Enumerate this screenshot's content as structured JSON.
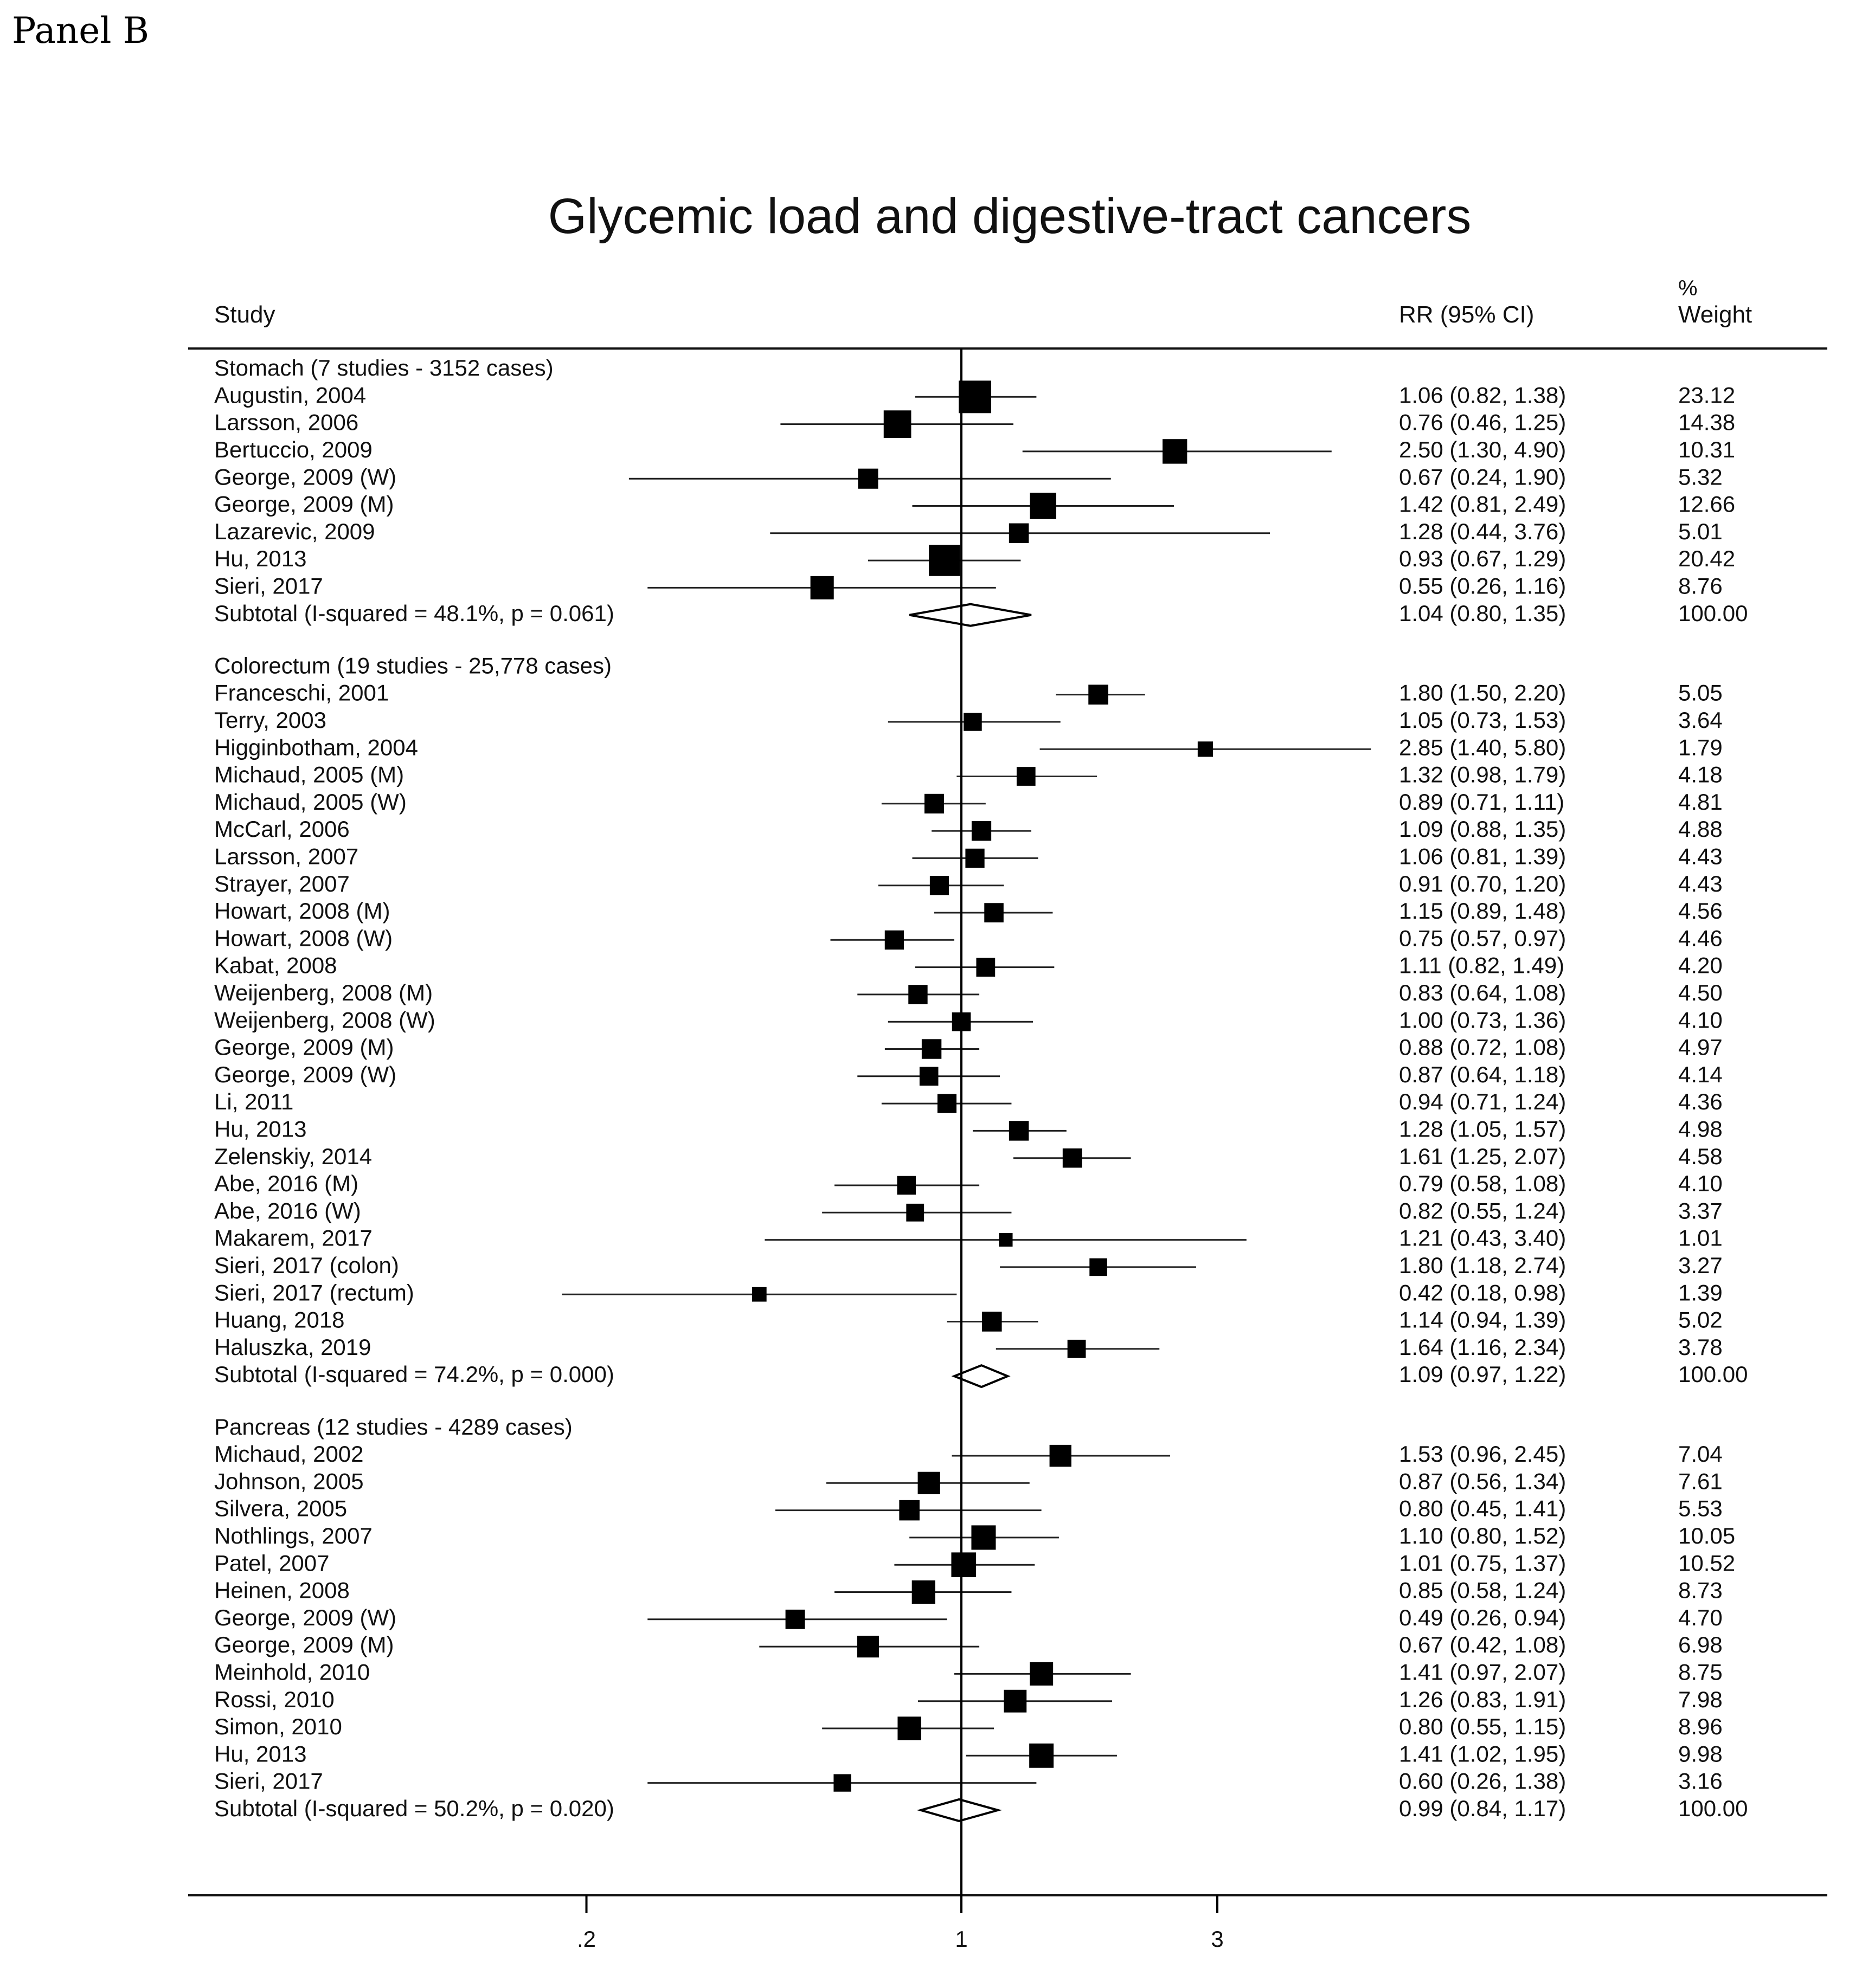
{
  "panel_label": "Panel B",
  "chart_data": {
    "type": "forest",
    "title": "Glycemic load and digestive-tract cancers",
    "columns": {
      "study": "Study",
      "effect": "RR (95% CI)",
      "weight_top": "%",
      "weight": "Weight"
    },
    "x_scale": "log",
    "null_line": 1,
    "xlim": [
      0.15,
      6.2
    ],
    "x_ticks": [
      {
        "value": 0.2,
        "label": ".2"
      },
      {
        "value": 1,
        "label": "1"
      },
      {
        "value": 3,
        "label": "3"
      }
    ],
    "groups": [
      {
        "name": "Stomach (7 studies - 3152 cases)",
        "studies": [
          {
            "label": "Augustin, 2004",
            "rr": 1.06,
            "lo": 0.82,
            "hi": 1.38,
            "ci_text": "1.06 (0.82, 1.38)",
            "weight": "23.12"
          },
          {
            "label": "Larsson, 2006",
            "rr": 0.76,
            "lo": 0.46,
            "hi": 1.25,
            "ci_text": "0.76 (0.46, 1.25)",
            "weight": "14.38"
          },
          {
            "label": "Bertuccio, 2009",
            "rr": 2.5,
            "lo": 1.3,
            "hi": 4.9,
            "ci_text": "2.50 (1.30, 4.90)",
            "weight": "10.31"
          },
          {
            "label": "George, 2009 (W)",
            "rr": 0.67,
            "lo": 0.24,
            "hi": 1.9,
            "ci_text": "0.67 (0.24, 1.90)",
            "weight": "5.32"
          },
          {
            "label": "George, 2009 (M)",
            "rr": 1.42,
            "lo": 0.81,
            "hi": 2.49,
            "ci_text": "1.42 (0.81, 2.49)",
            "weight": "12.66"
          },
          {
            "label": "Lazarevic, 2009",
            "rr": 1.28,
            "lo": 0.44,
            "hi": 3.76,
            "ci_text": "1.28 (0.44, 3.76)",
            "weight": "5.01"
          },
          {
            "label": "Hu, 2013",
            "rr": 0.93,
            "lo": 0.67,
            "hi": 1.29,
            "ci_text": "0.93 (0.67, 1.29)",
            "weight": "20.42"
          },
          {
            "label": "Sieri, 2017",
            "rr": 0.55,
            "lo": 0.26,
            "hi": 1.16,
            "ci_text": "0.55 (0.26, 1.16)",
            "weight": "8.76"
          }
        ],
        "subtotal": {
          "label": "Subtotal  (I-squared = 48.1%, p = 0.061)",
          "rr": 1.04,
          "lo": 0.8,
          "hi": 1.35,
          "ci_text": "1.04 (0.80, 1.35)",
          "weight": "100.00"
        }
      },
      {
        "name": "Colorectum (19 studies - 25,778 cases)",
        "studies": [
          {
            "label": "Franceschi, 2001",
            "rr": 1.8,
            "lo": 1.5,
            "hi": 2.2,
            "ci_text": "1.80 (1.50, 2.20)",
            "weight": "5.05"
          },
          {
            "label": "Terry, 2003",
            "rr": 1.05,
            "lo": 0.73,
            "hi": 1.53,
            "ci_text": "1.05 (0.73, 1.53)",
            "weight": "3.64"
          },
          {
            "label": "Higginbotham, 2004",
            "rr": 2.85,
            "lo": 1.4,
            "hi": 5.8,
            "ci_text": "2.85 (1.40, 5.80)",
            "weight": "1.79"
          },
          {
            "label": "Michaud, 2005 (M)",
            "rr": 1.32,
            "lo": 0.98,
            "hi": 1.79,
            "ci_text": "1.32 (0.98, 1.79)",
            "weight": "4.18"
          },
          {
            "label": "Michaud, 2005 (W)",
            "rr": 0.89,
            "lo": 0.71,
            "hi": 1.11,
            "ci_text": "0.89 (0.71, 1.11)",
            "weight": "4.81"
          },
          {
            "label": "McCarl, 2006",
            "rr": 1.09,
            "lo": 0.88,
            "hi": 1.35,
            "ci_text": "1.09 (0.88, 1.35)",
            "weight": "4.88"
          },
          {
            "label": "Larsson, 2007",
            "rr": 1.06,
            "lo": 0.81,
            "hi": 1.39,
            "ci_text": "1.06 (0.81, 1.39)",
            "weight": "4.43"
          },
          {
            "label": "Strayer, 2007",
            "rr": 0.91,
            "lo": 0.7,
            "hi": 1.2,
            "ci_text": "0.91 (0.70, 1.20)",
            "weight": "4.43"
          },
          {
            "label": "Howart, 2008 (M)",
            "rr": 1.15,
            "lo": 0.89,
            "hi": 1.48,
            "ci_text": "1.15 (0.89, 1.48)",
            "weight": "4.56"
          },
          {
            "label": "Howart, 2008 (W)",
            "rr": 0.75,
            "lo": 0.57,
            "hi": 0.97,
            "ci_text": "0.75 (0.57, 0.97)",
            "weight": "4.46"
          },
          {
            "label": "Kabat, 2008",
            "rr": 1.11,
            "lo": 0.82,
            "hi": 1.49,
            "ci_text": "1.11 (0.82, 1.49)",
            "weight": "4.20"
          },
          {
            "label": "Weijenberg, 2008 (M)",
            "rr": 0.83,
            "lo": 0.64,
            "hi": 1.08,
            "ci_text": "0.83 (0.64, 1.08)",
            "weight": "4.50"
          },
          {
            "label": "Weijenberg, 2008 (W)",
            "rr": 1.0,
            "lo": 0.73,
            "hi": 1.36,
            "ci_text": "1.00 (0.73, 1.36)",
            "weight": "4.10"
          },
          {
            "label": "George, 2009 (M)",
            "rr": 0.88,
            "lo": 0.72,
            "hi": 1.08,
            "ci_text": "0.88 (0.72, 1.08)",
            "weight": "4.97"
          },
          {
            "label": "George, 2009 (W)",
            "rr": 0.87,
            "lo": 0.64,
            "hi": 1.18,
            "ci_text": "0.87 (0.64, 1.18)",
            "weight": "4.14"
          },
          {
            "label": "Li, 2011",
            "rr": 0.94,
            "lo": 0.71,
            "hi": 1.24,
            "ci_text": "0.94 (0.71, 1.24)",
            "weight": "4.36"
          },
          {
            "label": "Hu, 2013",
            "rr": 1.28,
            "lo": 1.05,
            "hi": 1.57,
            "ci_text": "1.28 (1.05, 1.57)",
            "weight": "4.98"
          },
          {
            "label": "Zelenskiy, 2014",
            "rr": 1.61,
            "lo": 1.25,
            "hi": 2.07,
            "ci_text": "1.61 (1.25, 2.07)",
            "weight": "4.58"
          },
          {
            "label": "Abe, 2016 (M)",
            "rr": 0.79,
            "lo": 0.58,
            "hi": 1.08,
            "ci_text": "0.79 (0.58, 1.08)",
            "weight": "4.10"
          },
          {
            "label": "Abe, 2016 (W)",
            "rr": 0.82,
            "lo": 0.55,
            "hi": 1.24,
            "ci_text": "0.82 (0.55, 1.24)",
            "weight": "3.37"
          },
          {
            "label": "Makarem, 2017",
            "rr": 1.21,
            "lo": 0.43,
            "hi": 3.4,
            "ci_text": "1.21 (0.43, 3.40)",
            "weight": "1.01"
          },
          {
            "label": "Sieri, 2017 (colon)",
            "rr": 1.8,
            "lo": 1.18,
            "hi": 2.74,
            "ci_text": "1.80 (1.18, 2.74)",
            "weight": "3.27"
          },
          {
            "label": "Sieri, 2017 (rectum)",
            "rr": 0.42,
            "lo": 0.18,
            "hi": 0.98,
            "ci_text": "0.42 (0.18, 0.98)",
            "weight": "1.39"
          },
          {
            "label": "Huang, 2018",
            "rr": 1.14,
            "lo": 0.94,
            "hi": 1.39,
            "ci_text": "1.14 (0.94, 1.39)",
            "weight": "5.02"
          },
          {
            "label": "Haluszka, 2019",
            "rr": 1.64,
            "lo": 1.16,
            "hi": 2.34,
            "ci_text": "1.64 (1.16, 2.34)",
            "weight": "3.78"
          }
        ],
        "subtotal": {
          "label": "Subtotal  (I-squared = 74.2%, p = 0.000)",
          "rr": 1.09,
          "lo": 0.97,
          "hi": 1.22,
          "ci_text": "1.09 (0.97, 1.22)",
          "weight": "100.00"
        }
      },
      {
        "name": "Pancreas (12 studies - 4289 cases)",
        "studies": [
          {
            "label": "Michaud, 2002",
            "rr": 1.53,
            "lo": 0.96,
            "hi": 2.45,
            "ci_text": "1.53 (0.96, 2.45)",
            "weight": "7.04"
          },
          {
            "label": "Johnson, 2005",
            "rr": 0.87,
            "lo": 0.56,
            "hi": 1.34,
            "ci_text": "0.87 (0.56, 1.34)",
            "weight": "7.61"
          },
          {
            "label": "Silvera, 2005",
            "rr": 0.8,
            "lo": 0.45,
            "hi": 1.41,
            "ci_text": "0.80 (0.45, 1.41)",
            "weight": "5.53"
          },
          {
            "label": "Nothlings, 2007",
            "rr": 1.1,
            "lo": 0.8,
            "hi": 1.52,
            "ci_text": "1.10 (0.80, 1.52)",
            "weight": "10.05"
          },
          {
            "label": "Patel, 2007",
            "rr": 1.01,
            "lo": 0.75,
            "hi": 1.37,
            "ci_text": "1.01 (0.75, 1.37)",
            "weight": "10.52"
          },
          {
            "label": "Heinen, 2008",
            "rr": 0.85,
            "lo": 0.58,
            "hi": 1.24,
            "ci_text": "0.85 (0.58, 1.24)",
            "weight": "8.73"
          },
          {
            "label": "George, 2009 (W)",
            "rr": 0.49,
            "lo": 0.26,
            "hi": 0.94,
            "ci_text": "0.49 (0.26, 0.94)",
            "weight": "4.70"
          },
          {
            "label": "George, 2009 (M)",
            "rr": 0.67,
            "lo": 0.42,
            "hi": 1.08,
            "ci_text": "0.67 (0.42, 1.08)",
            "weight": "6.98"
          },
          {
            "label": "Meinhold, 2010",
            "rr": 1.41,
            "lo": 0.97,
            "hi": 2.07,
            "ci_text": "1.41 (0.97, 2.07)",
            "weight": "8.75"
          },
          {
            "label": "Rossi, 2010",
            "rr": 1.26,
            "lo": 0.83,
            "hi": 1.91,
            "ci_text": "1.26 (0.83, 1.91)",
            "weight": "7.98"
          },
          {
            "label": "Simon, 2010",
            "rr": 0.8,
            "lo": 0.55,
            "hi": 1.15,
            "ci_text": "0.80 (0.55, 1.15)",
            "weight": "8.96"
          },
          {
            "label": "Hu, 2013",
            "rr": 1.41,
            "lo": 1.02,
            "hi": 1.95,
            "ci_text": "1.41 (1.02, 1.95)",
            "weight": "9.98"
          },
          {
            "label": "Sieri, 2017",
            "rr": 0.6,
            "lo": 0.26,
            "hi": 1.38,
            "ci_text": "0.60 (0.26, 1.38)",
            "weight": "3.16"
          }
        ],
        "subtotal": {
          "label": "Subtotal  (I-squared = 50.2%, p = 0.020)",
          "rr": 0.99,
          "lo": 0.84,
          "hi": 1.17,
          "ci_text": "0.99 (0.84, 1.17)",
          "weight": "100.00"
        }
      }
    ]
  }
}
